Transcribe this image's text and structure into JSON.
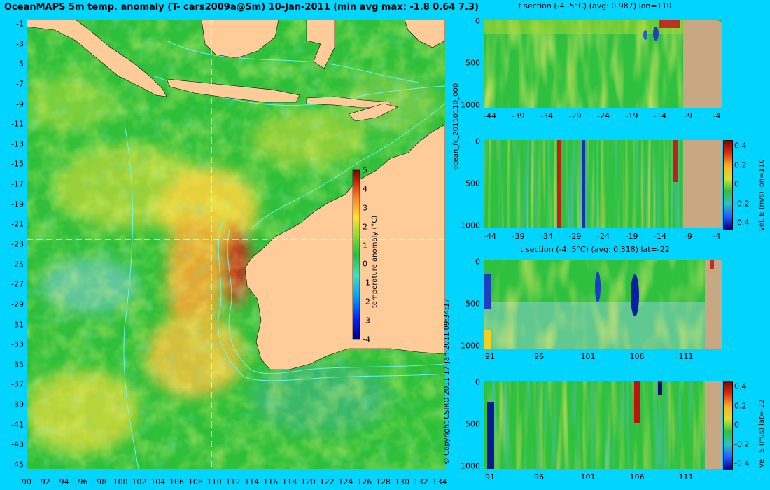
{
  "title": "OceanMAPS 5m temp. anomaly (T- cars2009a@5m) 10-Jan-2011 (min avg max: -1.8 0.64 7.3)",
  "colors": {
    "background": "#00d4ff",
    "land_map": "#ffcc99",
    "land_section": "#c8a882",
    "contour": "#66ffff",
    "crosshair": "#ffffff"
  },
  "map": {
    "lon_ticks": [
      "90",
      "92",
      "94",
      "96",
      "98",
      "100",
      "102",
      "104",
      "106",
      "108",
      "110",
      "112",
      "114",
      "116",
      "118",
      "120",
      "122",
      "124",
      "126",
      "128",
      "130",
      "132",
      "134"
    ],
    "lat_ticks": [
      "-1",
      "-3",
      "-5",
      "-7",
      "-9",
      "-11",
      "-13",
      "-15",
      "-17",
      "-19",
      "-21",
      "-23",
      "-25",
      "-27",
      "-29",
      "-31",
      "-33",
      "-35",
      "-37",
      "-39",
      "-41",
      "-43",
      "-45"
    ],
    "crosshair_lon": "110",
    "crosshair_lat": "-22",
    "colorbar_label": "temperature anomaly (°C)",
    "colorbar_ticks": [
      "5",
      "4",
      "3",
      "2",
      "1",
      "0",
      "-1",
      "-2",
      "-3",
      "-4"
    ]
  },
  "side_text": {
    "run_id": "ocean_fc_20110110_000",
    "copyright": "© Copyright CSIRO 2011   17-Jan-2011 09:34:17"
  },
  "panels": [
    {
      "id": "t-section-lon",
      "title": "t section (-4..5°C) (avg: 0.987) lon=110",
      "x_ticks": [
        "-44",
        "-39",
        "-34",
        "-29",
        "-24",
        "-19",
        "-14",
        "-9",
        "-4"
      ],
      "y_ticks": [
        "0",
        "500",
        "1000"
      ],
      "colorbar": null
    },
    {
      "id": "vel-e-section",
      "title": "",
      "x_ticks": [
        "-44",
        "-39",
        "-34",
        "-29",
        "-24",
        "-19",
        "-14",
        "-9",
        "-4"
      ],
      "y_ticks": [
        "0",
        "500",
        "1000"
      ],
      "colorbar": {
        "label": "vel. E (m/s) lon=110",
        "ticks": [
          "0.4",
          "0.2",
          "0",
          "-0.2",
          "-0.4"
        ]
      }
    },
    {
      "id": "t-section-lat",
      "title": "t section (-4..5°C) (avg: 0.318) lat=-22",
      "x_ticks": [
        "91",
        "96",
        "101",
        "106",
        "111"
      ],
      "y_ticks": [
        "0",
        "500",
        "1000"
      ],
      "colorbar": null
    },
    {
      "id": "vel-s-section",
      "title": "",
      "x_ticks": [
        "91",
        "96",
        "101",
        "106",
        "111"
      ],
      "y_ticks": [
        "0",
        "500",
        "1000"
      ],
      "colorbar": {
        "label": "vel. S (m/s) lat=-22",
        "ticks": [
          "0.4",
          "0.2",
          "0",
          "-0.2",
          "-0.4"
        ]
      }
    }
  ]
}
